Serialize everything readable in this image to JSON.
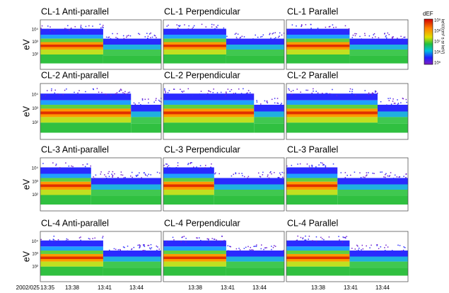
{
  "chart_data": {
    "type": "spectrogram-grid",
    "ylabel": "eV",
    "yticks": [
      "10⁴",
      "10³",
      "10²"
    ],
    "date_label": "2002/025",
    "rows": [
      {
        "panels": [
          "CL-1 Anti-parallel",
          "CL-1 Perpendicular",
          "CL-1 Parallel"
        ]
      },
      {
        "panels": [
          "CL-2 Anti-parallel",
          "CL-2 Perpendicular",
          "CL-2 Parallel"
        ]
      },
      {
        "panels": [
          "CL-3 Anti-parallel",
          "CL-3 Perpendicular",
          "CL-3 Parallel"
        ]
      },
      {
        "panels": [
          "CL-4 Anti-parallel",
          "CL-4 Perpendicular",
          "CL-4 Parallel"
        ]
      }
    ],
    "columns": [
      {
        "xticks": [
          "13:35",
          "13:38",
          "13:41",
          "13:44"
        ]
      },
      {
        "xticks": [
          "13:38",
          "13:41",
          "13:44"
        ]
      },
      {
        "xticks": [
          "13:38",
          "13:41",
          "13:44"
        ]
      }
    ],
    "colorbar": {
      "title": "dEF",
      "units": "keV/(cm² s sr keV)",
      "ticks": [
        "10⁹",
        "10⁸",
        "10⁷",
        "10⁶",
        "10⁵"
      ]
    }
  }
}
